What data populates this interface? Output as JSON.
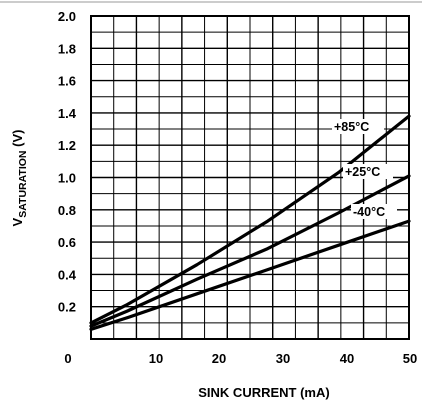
{
  "chart_data": {
    "type": "line",
    "title": "",
    "xlabel": "SINK CURRENT (mA)",
    "ylabel": {
      "main": "V",
      "sub": "SATURATION",
      "unit": " (V)"
    },
    "xlim": [
      5,
      50
    ],
    "ylim": [
      0,
      2.0
    ],
    "x_ticks": [
      "0",
      "10",
      "20",
      "30",
      "40",
      "50"
    ],
    "y_ticks": [
      "0.2",
      "0.4",
      "0.6",
      "0.8",
      "1.0",
      "1.2",
      "1.4",
      "1.6",
      "1.8",
      "2.0"
    ],
    "grid": true,
    "series": [
      {
        "name": "+85°C",
        "x": [
          5,
          10,
          20,
          30,
          40,
          50
        ],
        "y": [
          0.1,
          0.21,
          0.46,
          0.73,
          1.03,
          1.38
        ]
      },
      {
        "name": "+25°C",
        "x": [
          5,
          10,
          20,
          30,
          40,
          50
        ],
        "y": [
          0.08,
          0.17,
          0.37,
          0.56,
          0.78,
          1.01
        ]
      },
      {
        "name": "-40°C",
        "x": [
          5,
          10,
          20,
          30,
          40,
          50
        ],
        "y": [
          0.06,
          0.13,
          0.28,
          0.43,
          0.58,
          0.73
        ]
      }
    ]
  }
}
